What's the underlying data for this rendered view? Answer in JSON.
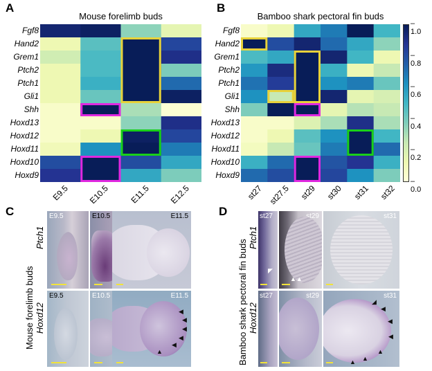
{
  "panel_a": {
    "letter": "A",
    "title": "Mouse forelimb buds",
    "rows": [
      "Fgf8",
      "Hand2",
      "Grem1",
      "Ptch2",
      "Ptch1",
      "Gli1",
      "Shh",
      "Hoxd13",
      "Hoxd12",
      "Hoxd11",
      "Hoxd10",
      "Hoxd9"
    ],
    "cols": [
      "E9.5",
      "E10.5",
      "E11.5",
      "E12.5"
    ],
    "values": [
      [
        0.95,
        0.98,
        0.35,
        0.15
      ],
      [
        0.12,
        0.45,
        1.0,
        0.82
      ],
      [
        0.22,
        0.48,
        1.0,
        0.9
      ],
      [
        0.12,
        0.48,
        1.0,
        0.38
      ],
      [
        0.12,
        0.52,
        1.0,
        0.72
      ],
      [
        0.12,
        0.42,
        1.0,
        0.98
      ],
      [
        0.05,
        1.0,
        0.3,
        0.02
      ],
      [
        0.05,
        0.05,
        0.35,
        0.9
      ],
      [
        0.05,
        0.12,
        0.98,
        0.82
      ],
      [
        0.1,
        0.62,
        1.0,
        0.68
      ],
      [
        0.8,
        1.0,
        0.8,
        0.55
      ],
      [
        0.88,
        1.0,
        0.55,
        0.38
      ]
    ],
    "boxes": [
      {
        "color": "#e8d23a",
        "r0": 1,
        "r1": 6,
        "c0": 2,
        "c1": 3
      },
      {
        "color": "#e028e0",
        "r0": 6,
        "r1": 7,
        "c0": 1,
        "c1": 2
      },
      {
        "color": "#19d019",
        "r0": 8,
        "r1": 10,
        "c0": 2,
        "c1": 3
      },
      {
        "color": "#e028e0",
        "r0": 10,
        "r1": 12,
        "c0": 1,
        "c1": 2
      }
    ]
  },
  "panel_b": {
    "letter": "B",
    "title": "Bamboo shark pectoral fin buds",
    "rows": [
      "Fgf8",
      "Hand2",
      "Grem1",
      "Ptch2",
      "Ptch1",
      "Gli1",
      "Shh",
      "Hoxd13",
      "Hoxd12",
      "Hoxd11",
      "Hoxd10",
      "Hoxd9"
    ],
    "cols": [
      "st27",
      "st27.5",
      "st29",
      "st30",
      "st31",
      "st32"
    ],
    "values": [
      [
        0.05,
        0.12,
        0.55,
        0.68,
        1.0,
        0.5
      ],
      [
        1.0,
        0.8,
        0.95,
        0.72,
        0.55,
        0.35
      ],
      [
        0.48,
        0.55,
        1.0,
        0.95,
        0.5,
        0.12
      ],
      [
        0.6,
        0.92,
        1.0,
        0.52,
        0.12,
        0.25
      ],
      [
        0.7,
        0.85,
        1.0,
        0.62,
        0.68,
        0.42
      ],
      [
        0.62,
        0.25,
        1.0,
        0.95,
        0.15,
        0.2
      ],
      [
        0.38,
        1.0,
        1.0,
        0.15,
        0.28,
        0.25
      ],
      [
        0.05,
        0.05,
        0.18,
        0.3,
        0.9,
        0.3
      ],
      [
        0.05,
        0.12,
        0.45,
        0.62,
        1.0,
        0.5
      ],
      [
        0.08,
        0.25,
        0.42,
        0.68,
        1.0,
        0.72
      ],
      [
        0.52,
        0.72,
        1.0,
        0.78,
        0.88,
        0.52
      ],
      [
        0.72,
        0.8,
        1.0,
        0.82,
        0.62,
        0.38
      ]
    ],
    "boxes": [
      {
        "color": "#e8d23a",
        "r0": 1,
        "r1": 2,
        "c0": 0,
        "c1": 1
      },
      {
        "color": "#e8d23a",
        "r0": 2,
        "r1": 6,
        "c0": 2,
        "c1": 3
      },
      {
        "color": "#e8d23a",
        "r0": 5,
        "r1": 6,
        "c0": 1,
        "c1": 2
      },
      {
        "color": "#e028e0",
        "r0": 6,
        "r1": 7,
        "c0": 2,
        "c1": 3
      },
      {
        "color": "#19d019",
        "r0": 8,
        "r1": 10,
        "c0": 4,
        "c1": 5
      },
      {
        "color": "#e028e0",
        "r0": 10,
        "r1": 12,
        "c0": 2,
        "c1": 3
      }
    ]
  },
  "colorbar": {
    "ticks": [
      "1.0",
      "0.8",
      "0.6",
      "0.4",
      "0.2",
      "0.0"
    ],
    "min": 0,
    "max": 1
  },
  "panel_c": {
    "letter": "C",
    "side_title": "Mouse forelimb buds",
    "row_top_gene": "Ptch1",
    "row_bottom_gene": "Hoxd12",
    "top_labels": [
      "E9.5",
      "E10.5",
      "E11.5"
    ],
    "bottom_labels": [
      "E9.5",
      "E10.5",
      "E11.5"
    ]
  },
  "panel_d": {
    "letter": "D",
    "side_title": "Bamboo shark pectoral fin buds",
    "row_top_gene": "Ptch1",
    "row_bottom_gene": "Hoxd12",
    "top_labels": [
      "st27",
      "st29",
      "st31"
    ],
    "bottom_labels": [
      "st27",
      "st29",
      "st31"
    ]
  },
  "colors": {
    "scalebar": "#f2e33a",
    "box_yellow": "#e8d23a",
    "box_magenta": "#e028e0",
    "box_green": "#19d019"
  }
}
